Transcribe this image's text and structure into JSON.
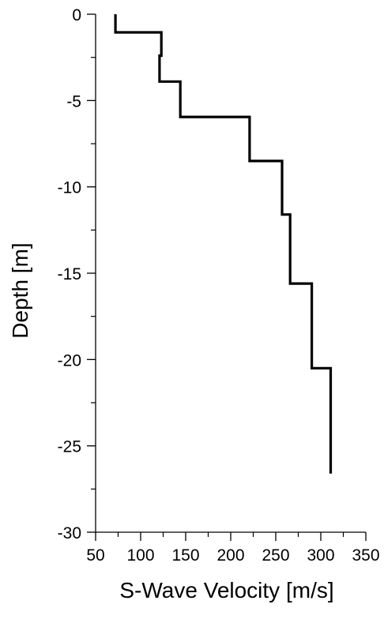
{
  "chart_data": {
    "type": "line",
    "title": "",
    "xlabel": "S-Wave Velocity [m/s]",
    "ylabel": "Depth [m]",
    "xlim": [
      50,
      350
    ],
    "ylim": [
      -30,
      0
    ],
    "x_ticks": [
      50,
      100,
      150,
      200,
      250,
      300,
      350
    ],
    "y_ticks": [
      0,
      -5,
      -10,
      -15,
      -20,
      -25,
      -30
    ],
    "grid": false,
    "legend": "none",
    "line_color": "#000000",
    "series": [
      {
        "points": [
          {
            "x": 72,
            "y": 0
          },
          {
            "x": 72,
            "y": -1.05
          },
          {
            "x": 123,
            "y": -1.05
          },
          {
            "x": 123,
            "y": -2.4
          },
          {
            "x": 121,
            "y": -2.4
          },
          {
            "x": 121,
            "y": -3.9
          },
          {
            "x": 144,
            "y": -3.9
          },
          {
            "x": 144,
            "y": -5.95
          },
          {
            "x": 221,
            "y": -5.95
          },
          {
            "x": 221,
            "y": -8.5
          },
          {
            "x": 257,
            "y": -8.5
          },
          {
            "x": 257,
            "y": -11.6
          },
          {
            "x": 266,
            "y": -11.6
          },
          {
            "x": 266,
            "y": -15.6
          },
          {
            "x": 290,
            "y": -15.6
          },
          {
            "x": 290,
            "y": -20.5
          },
          {
            "x": 311,
            "y": -20.5
          },
          {
            "x": 311,
            "y": -26.6
          }
        ]
      }
    ]
  }
}
